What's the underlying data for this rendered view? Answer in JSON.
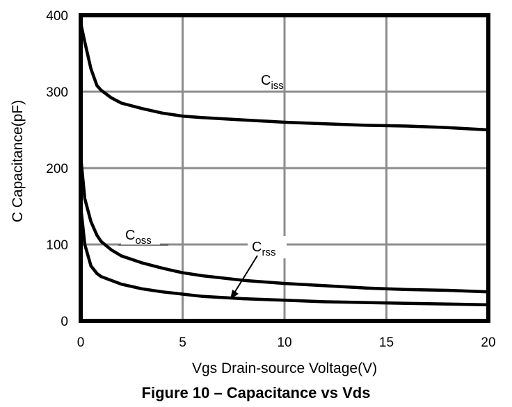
{
  "caption": "Figure 10 – Capacitance vs Vds",
  "chart_data": {
    "type": "line",
    "title": "",
    "xlabel": "Vgs Drain-source Voltage(V)",
    "ylabel": "C Capacitance(pF)",
    "xlim": [
      0,
      20
    ],
    "ylim": [
      0,
      400
    ],
    "xticks": [
      "0",
      "5",
      "10",
      "15",
      "20"
    ],
    "yticks": [
      "0",
      "100",
      "200",
      "300",
      "400"
    ],
    "grid": true,
    "series": [
      {
        "name": "Ciss",
        "label_main": "C",
        "label_sub": "iss",
        "x": [
          0,
          0.2,
          0.5,
          0.8,
          1,
          1.5,
          2,
          3,
          4,
          5,
          6,
          8,
          10,
          12,
          14,
          16,
          18,
          20
        ],
        "y": [
          390,
          365,
          330,
          308,
          302,
          292,
          285,
          278,
          272,
          268,
          266,
          263,
          260,
          258,
          256,
          255,
          253,
          250
        ]
      },
      {
        "name": "Coss",
        "label_main": "C",
        "label_sub": "oss",
        "x": [
          0,
          0.2,
          0.5,
          0.8,
          1,
          1.5,
          2,
          3,
          4,
          5,
          6,
          8,
          10,
          12,
          14,
          16,
          18,
          20
        ],
        "y": [
          215,
          160,
          130,
          112,
          104,
          93,
          85,
          76,
          69,
          63,
          59,
          53,
          49,
          46,
          43,
          41,
          40,
          38
        ]
      },
      {
        "name": "Crss",
        "label_main": "C",
        "label_sub": "rss",
        "x": [
          0,
          0.2,
          0.5,
          0.8,
          1,
          1.5,
          2,
          3,
          4,
          5,
          6,
          8,
          10,
          12,
          14,
          16,
          18,
          20
        ],
        "y": [
          150,
          100,
          72,
          62,
          58,
          53,
          48,
          42,
          38,
          35,
          32,
          29,
          27,
          25,
          24,
          23,
          22,
          21
        ]
      }
    ]
  }
}
